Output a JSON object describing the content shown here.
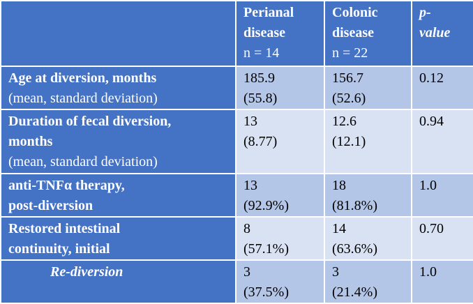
{
  "header": {
    "col1": {
      "name_l1": "Perianal",
      "name_l2": "disease",
      "n": "n = 14"
    },
    "col2": {
      "name_l1": "Colonic",
      "name_l2": "disease",
      "n": "n = 22"
    },
    "col3": {
      "name_l1": "p-",
      "name_l2": "value"
    }
  },
  "rows": [
    {
      "label_l1": "Age at diversion, months",
      "label_sub": "(mean, standard deviation)",
      "perianal": [
        "185.9",
        "(55.8)"
      ],
      "colonic": [
        "156.7",
        "(52.6)"
      ],
      "p": "0.12"
    },
    {
      "label_l1": "Duration of fecal diversion,",
      "label_l2": "months",
      "label_sub": "(mean, standard deviation)",
      "perianal": [
        "13",
        "(8.77)"
      ],
      "colonic": [
        "12.6",
        "(12.1)"
      ],
      "p": "0.94"
    },
    {
      "label_l1": "anti-TNFα therapy,",
      "label_l2": "post-diversion",
      "perianal": [
        "13",
        "(92.9%)"
      ],
      "colonic": [
        "18",
        "(81.8%)"
      ],
      "p": "1.0"
    },
    {
      "label_l1": "Restored intestinal",
      "label_l2": "continuity, initial",
      "perianal": [
        "8",
        "(57.1%)"
      ],
      "colonic": [
        "14",
        "(63.6%)"
      ],
      "p": "0.70"
    },
    {
      "label_l1": "Re-diversion",
      "perianal": [
        "3",
        "(37.5%)"
      ],
      "colonic": [
        "3",
        "(21.4%)"
      ],
      "p": "1.0"
    }
  ],
  "colors": {
    "header_blue": "#4472c4",
    "band_dark": "#b4c6e7",
    "band_light": "#d9e2f3"
  }
}
